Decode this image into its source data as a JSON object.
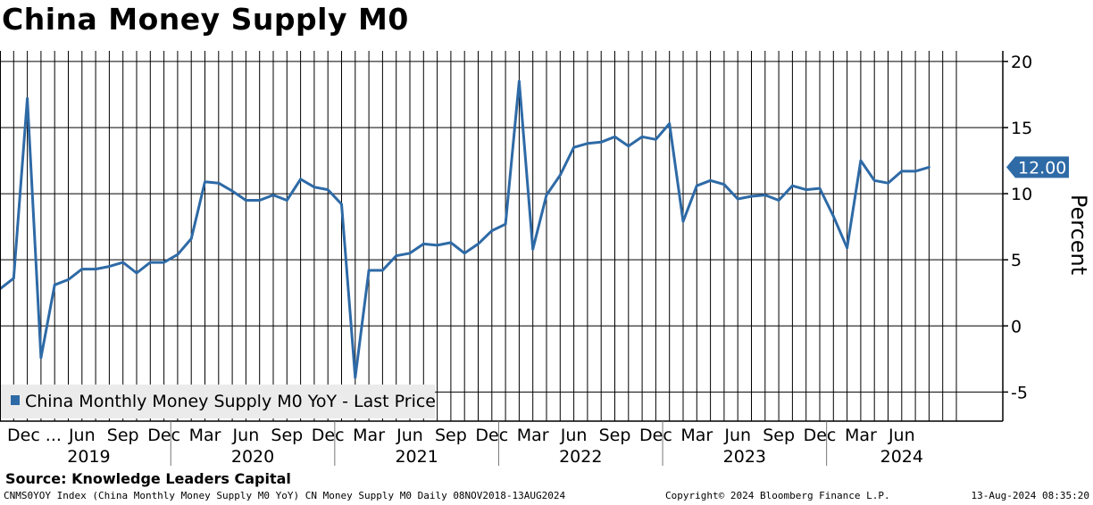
{
  "header": {
    "title": "China Money Supply M0"
  },
  "footer": {
    "source": "Source:  Knowledge Leaders Capital",
    "index_info": "CNMS0YOY Index (China Monthly Money Supply M0 YoY) CN Money Supply M0  Daily 08NOV2018-13AUG2024",
    "copyright": "Copyright© 2024 Bloomberg Finance L.P.",
    "timestamp": "13-Aug-2024 08:35:20"
  },
  "colors": {
    "series": "#2e6aa6",
    "last_price_badge": "#2e6aa6",
    "grid": "#000000",
    "legend_bg": "#ebebeb"
  },
  "chart_data": {
    "type": "line",
    "ylabel": "Percent",
    "ylim": [
      -7.2,
      20.8
    ],
    "yticks": [
      -5,
      0,
      5,
      10,
      15,
      20
    ],
    "y_tick_labels": [
      "-5",
      "0",
      "5",
      "10",
      "15",
      "20"
    ],
    "last_price_label": "12.00",
    "legend": "China Monthly Money Supply M0 YoY - Last Price",
    "month_labels": [
      {
        "month": 0,
        "text": "Dec ..."
      },
      {
        "month": 6,
        "text": "Jun"
      },
      {
        "month": 9,
        "text": "Sep"
      },
      {
        "month": 12,
        "text": "Dec"
      },
      {
        "month": 15,
        "text": "Mar"
      },
      {
        "month": 18,
        "text": "Jun"
      },
      {
        "month": 21,
        "text": "Sep"
      },
      {
        "month": 24,
        "text": "Dec"
      },
      {
        "month": 27,
        "text": "Mar"
      },
      {
        "month": 30,
        "text": "Jun"
      },
      {
        "month": 33,
        "text": "Sep"
      },
      {
        "month": 36,
        "text": "Dec"
      },
      {
        "month": 39,
        "text": "Mar"
      },
      {
        "month": 42,
        "text": "Jun"
      },
      {
        "month": 45,
        "text": "Sep"
      },
      {
        "month": 48,
        "text": "Dec"
      },
      {
        "month": 51,
        "text": "Mar"
      },
      {
        "month": 54,
        "text": "Jun"
      },
      {
        "month": 57,
        "text": "Sep"
      },
      {
        "month": 60,
        "text": "Dec"
      },
      {
        "month": 63,
        "text": "Mar"
      },
      {
        "month": 66,
        "text": "Jun"
      }
    ],
    "year_labels": [
      {
        "month": 6.5,
        "text": "2019"
      },
      {
        "month": 18.5,
        "text": "2020"
      },
      {
        "month": 30.5,
        "text": "2021"
      },
      {
        "month": 42.5,
        "text": "2022"
      },
      {
        "month": 54.5,
        "text": "2023"
      },
      {
        "month": 66,
        "text": "2024"
      }
    ],
    "x_start": "2018-11-01",
    "x_end": "2024-08-13",
    "x": [
      "2018-11",
      "2018-12",
      "2019-01",
      "2019-02",
      "2019-03",
      "2019-04",
      "2019-05",
      "2019-06",
      "2019-07",
      "2019-08",
      "2019-09",
      "2019-10",
      "2019-11",
      "2019-12",
      "2020-01",
      "2020-02",
      "2020-03",
      "2020-04",
      "2020-05",
      "2020-06",
      "2020-07",
      "2020-08",
      "2020-09",
      "2020-10",
      "2020-11",
      "2020-12",
      "2021-01",
      "2021-02",
      "2021-03",
      "2021-04",
      "2021-05",
      "2021-06",
      "2021-07",
      "2021-08",
      "2021-09",
      "2021-10",
      "2021-11",
      "2021-12",
      "2022-01",
      "2022-02",
      "2022-03",
      "2022-04",
      "2022-05",
      "2022-06",
      "2022-07",
      "2022-08",
      "2022-09",
      "2022-10",
      "2022-11",
      "2022-12",
      "2023-01",
      "2023-02",
      "2023-03",
      "2023-04",
      "2023-05",
      "2023-06",
      "2023-07",
      "2023-08",
      "2023-09",
      "2023-10",
      "2023-11",
      "2023-12",
      "2024-01",
      "2024-02",
      "2024-03",
      "2024-04",
      "2024-05",
      "2024-06",
      "2024-07"
    ],
    "series": [
      {
        "name": "China Monthly Money Supply M0 YoY",
        "values": [
          2.8,
          3.6,
          17.2,
          -2.4,
          3.1,
          3.5,
          4.3,
          4.3,
          4.5,
          4.8,
          4.0,
          4.8,
          4.8,
          5.4,
          6.6,
          10.9,
          10.8,
          10.2,
          9.5,
          9.5,
          9.9,
          9.5,
          11.1,
          10.5,
          10.3,
          9.2,
          -3.9,
          4.2,
          4.2,
          5.3,
          5.5,
          6.2,
          6.1,
          6.3,
          5.5,
          6.2,
          7.2,
          7.7,
          18.5,
          5.8,
          9.9,
          11.4,
          13.5,
          13.8,
          13.9,
          14.3,
          13.6,
          14.3,
          14.1,
          15.3,
          7.9,
          10.6,
          11.0,
          10.7,
          9.6,
          9.8,
          9.9,
          9.5,
          10.6,
          10.3,
          10.4,
          8.3,
          5.9,
          12.5,
          11.0,
          10.8,
          11.7,
          11.7,
          12.0
        ]
      }
    ]
  }
}
